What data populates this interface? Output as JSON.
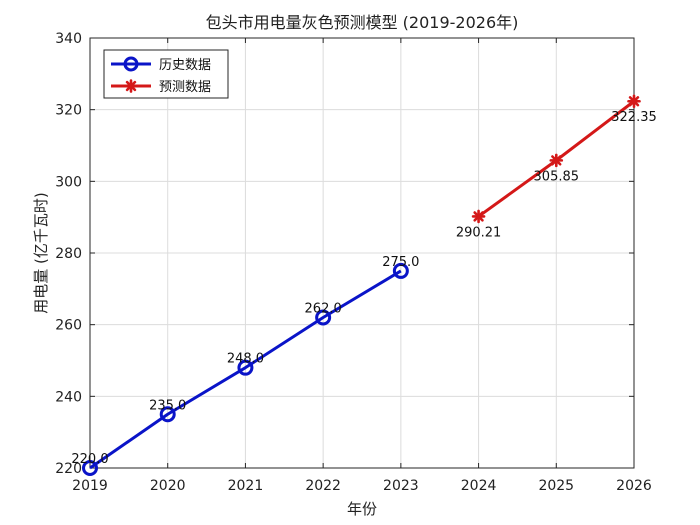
{
  "chart_data": {
    "type": "line",
    "title": "包头市用电量灰色预测模型 (2019-2026年)",
    "xlabel": "年份",
    "ylabel": "用电量 (亿千瓦时)",
    "xlim": [
      2019,
      2026
    ],
    "ylim": [
      220,
      340
    ],
    "xticks": [
      "2019",
      "2020",
      "2021",
      "2022",
      "2023",
      "2024",
      "2025",
      "2026"
    ],
    "yticks": [
      "220",
      "240",
      "260",
      "280",
      "300",
      "320",
      "340"
    ],
    "grid": true,
    "legend_position": "top-left",
    "series": [
      {
        "name": "历史数据",
        "color": "#0a14c8",
        "marker": "circle",
        "x": [
          2019,
          2020,
          2021,
          2022,
          2023
        ],
        "values": [
          220.0,
          235.0,
          248.0,
          262.0,
          275.0
        ],
        "labels": [
          "220.0",
          "235.0",
          "248.0",
          "262.0",
          "275.0"
        ]
      },
      {
        "name": "预测数据",
        "color": "#d41818",
        "marker": "asterisk",
        "x": [
          2024,
          2025,
          2026
        ],
        "values": [
          290.21,
          305.85,
          322.35
        ],
        "labels": [
          "290.21",
          "305.85",
          "322.35"
        ]
      }
    ]
  }
}
